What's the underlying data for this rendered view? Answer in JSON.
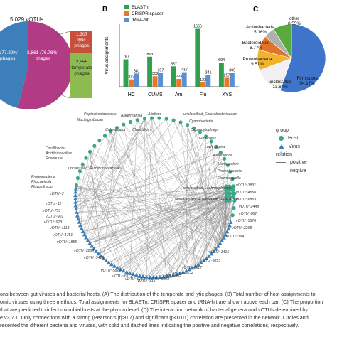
{
  "panel_a": {
    "total_votus": "5,029 vOTUs",
    "pie_left_lines": [
      "(77.22%)",
      "phages"
    ],
    "pie_right_lines": [
      "3,861 (76.78%)",
      "phages"
    ],
    "lytic_lines": [
      "1,307",
      "lytic",
      "phages"
    ],
    "temperate_lines": [
      "2,555",
      "temperate",
      "phages"
    ]
  },
  "panel_b_label": "B",
  "panel_c_label": "C",
  "panel_d": {
    "legend_group_title": "group",
    "legend_group_items": [
      {
        "label": "Host",
        "color": "#3aa786"
      },
      {
        "label": "Virus",
        "color": "#3d7fb8"
      }
    ],
    "legend_relation_title": "relation",
    "legend_relation_items": [
      {
        "label": "positive",
        "style": "solid"
      },
      {
        "label": "negtive",
        "style": "dashed"
      }
    ],
    "host_labels_left": [
      "Peptostreptococcus",
      "Mucilaginibacter",
      "Akkermansia",
      "Alistipes",
      "Caloramator",
      "Clostridium",
      "Oscillibacter",
      "Acidithiobacillus",
      "Roseburia",
      "Proteobacteria",
      "Phocaeicola",
      "Flavonifractor",
      "unclassified_Ruminococcaceae"
    ],
    "host_labels_right": [
      "unclassified_Enterobacteriaceae",
      "Cyanobacteria",
      "Capnocytophaga",
      "Firmicutes",
      "Lachnospira",
      "Aeromonas",
      "Muribaculum",
      "Proteobacteria",
      "Eisenbergiella",
      "unclassified_Lachnospiraceae",
      "Muribaculaceae bacterium DSM 103887"
    ],
    "virus_labels_left": [
      "vOTU~3",
      "vOTU~12",
      "vOTU~753",
      "vOTU~901",
      "vOTU~923",
      "vOTU~1118",
      "vOTU~1751",
      "vOTU~1855",
      "vOTU~3234",
      "vOTU~3415"
    ],
    "virus_labels_right": [
      "vOTU~3831",
      "vOTU~4550",
      "vOTU~6853",
      "vOTU~2448",
      "vOTU~887",
      "vOTU~5576",
      "vOTU~2268",
      "vOTU~394",
      "vOTU~1415",
      "vOTU~6853"
    ],
    "virus_labels_bottom": [
      "vOTU~5823",
      "vOTU~6112",
      "vOTU~6258",
      "vOTU~912",
      "vOTU~5903",
      "vOTU~992",
      "vOTU~6624",
      "vOTU~1217"
    ]
  },
  "caption": [
    "ons between gut viruses and bacterial hosts. (A) The distribution of the temperate and lytic phages. (B) Total number of host assignments to",
    "omic viruses using three methods. Total assignments for BLASTn, CRISPR spacer and tRNA-hit are shown above each bar. (C) The proportion",
    "that are predicted to infect microbial hosts at the phylum level. (D) The interaction network of bacterial genera and vOTUs determined by",
    "e v3.7.1. Only connections with a strong (Pearson's |r|>0.7) and significant (p<0.01) correlation are presented in the network. Circles and",
    "resented the different bacteria and viruses, with solid and dashed lines indicating the positive and negative correlations, respectively."
  ],
  "chart_data": [
    {
      "type": "bar",
      "panel": "B",
      "ylabel": "Virus assignments",
      "categories": [
        "HC",
        "CUMS",
        "Ami",
        "Flu",
        "XYS"
      ],
      "series": [
        {
          "name": "BLASTn",
          "color": "#2ea04f",
          "values": [
            787,
            863,
            587,
            1666,
            694
          ]
        },
        {
          "name": "CRISPR spacer",
          "color": "#e8762b",
          "values": [
            213,
            302,
            224,
            122,
            257
          ]
        },
        {
          "name": "tRNA-hit",
          "color": "#5b8fd0",
          "values": [
            381,
            397,
            417,
            341,
            399
          ]
        }
      ],
      "ylim": [
        0,
        1800
      ]
    },
    {
      "type": "pie",
      "panel": "C",
      "slices": [
        {
          "label": "Firmicutes",
          "pct_label": "54.17%",
          "value": 54.17,
          "color": "#3e74c9"
        },
        {
          "label": "unclassified",
          "pct_label": "13.64%",
          "value": 13.64,
          "color": "#f1f1f1"
        },
        {
          "label": "Proteobacteria",
          "pct_label": "9.51%",
          "value": 9.51,
          "color": "#f0b32a"
        },
        {
          "label": "Bacteroidetes",
          "pct_label": "6.77%",
          "value": 6.77,
          "color": "#e2742a"
        },
        {
          "label": "Actinobacteria",
          "pct_label": "5.16%",
          "value": 5.16,
          "color": "#b0b0b0"
        },
        {
          "label": "other",
          "pct_label": "8.55%",
          "value": 8.55,
          "color": "#58aa3f"
        }
      ]
    }
  ]
}
